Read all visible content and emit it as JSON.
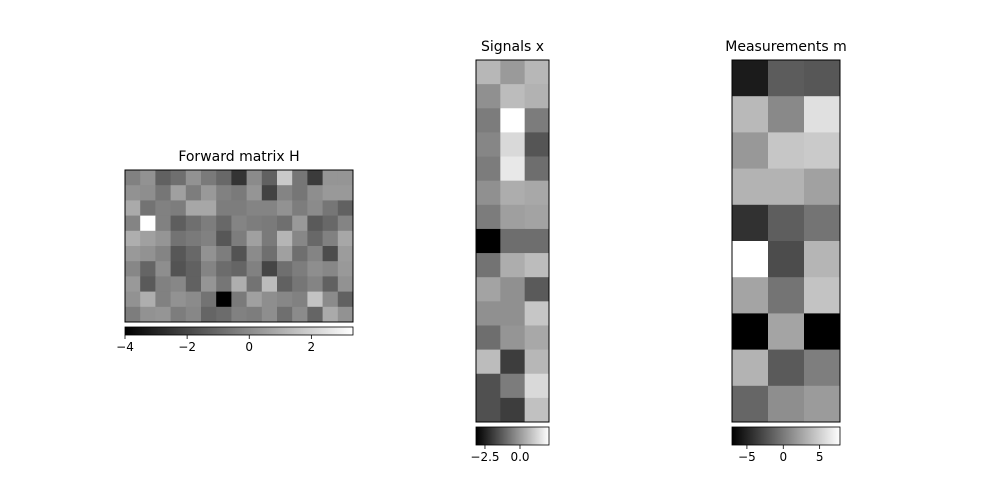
{
  "chart_data": [
    {
      "type": "heatmap",
      "title": "Forward matrix H",
      "cmap": "gray",
      "clim": [
        -4,
        3.34
      ],
      "colorbar_ticks": [
        {
          "value": -4,
          "label": "−4"
        },
        {
          "value": -2,
          "label": "−2"
        },
        0,
        2
      ],
      "values": [
        [
          -0.3,
          0.2,
          -1.2,
          -0.8,
          0.2,
          -0.5,
          -1.0,
          -2.5,
          0.0,
          -1.2,
          1.8,
          -0.6,
          -2.3,
          0.3,
          0.3
        ],
        [
          0.2,
          0.1,
          -0.6,
          0.6,
          -0.4,
          0.4,
          -0.3,
          -0.5,
          0.3,
          -2.1,
          -0.2,
          -0.6,
          0.1,
          0.4,
          0.4
        ],
        [
          0.9,
          -0.7,
          -0.3,
          -0.4,
          0.8,
          0.8,
          -0.4,
          -0.4,
          -0.2,
          -0.2,
          0.2,
          -0.4,
          0.0,
          -0.6,
          -1.2
        ],
        [
          -0.2,
          3.34,
          -0.3,
          -1.3,
          -0.8,
          -0.4,
          -1.0,
          -0.2,
          -0.4,
          -0.5,
          -0.8,
          0.4,
          -1.4,
          -1.0,
          -0.2
        ],
        [
          1.0,
          0.6,
          0.3,
          -0.7,
          -0.5,
          -0.3,
          -1.5,
          -0.4,
          0.6,
          -0.5,
          1.2,
          -0.1,
          -1.0,
          -0.3,
          0.8
        ],
        [
          0.4,
          0.2,
          -0.2,
          -1.5,
          -1.0,
          0.2,
          -0.4,
          -1.6,
          0.0,
          -0.8,
          0.6,
          -0.8,
          -0.2,
          -1.8,
          0.5
        ],
        [
          -0.1,
          -1.1,
          0.1,
          -1.6,
          -1.2,
          -0.2,
          -0.9,
          -1.1,
          -0.3,
          -2.0,
          -0.8,
          -0.4,
          0.1,
          -0.1,
          0.4
        ],
        [
          0.4,
          -1.4,
          -0.3,
          -0.1,
          -1.2,
          0.3,
          -0.6,
          1.0,
          -0.7,
          1.4,
          -1.2,
          -0.6,
          -0.2,
          -1.2,
          0.2
        ],
        [
          0.2,
          1.0,
          -0.3,
          0.2,
          0.0,
          -0.7,
          -4.0,
          -0.5,
          0.6,
          0.1,
          -0.1,
          -0.3,
          1.6,
          0.0,
          -1.2
        ],
        [
          -0.4,
          0.2,
          0.3,
          -0.4,
          -0.1,
          -1.1,
          -0.9,
          -0.3,
          -0.4,
          0.1,
          -0.8,
          0.0,
          -1.1,
          0.9,
          0.2
        ]
      ]
    },
    {
      "type": "heatmap",
      "title": "Signals x",
      "cmap": "gray",
      "clim": [
        -3.14,
        2.07
      ],
      "colorbar_ticks": [
        {
          "value": -2.5,
          "label": "−2.5"
        },
        {
          "value": 0,
          "label": "0.0"
        }
      ],
      "values": [
        [
          0.6,
          0.0,
          0.6
        ],
        [
          -0.2,
          0.7,
          0.5
        ],
        [
          -0.6,
          2.07,
          -0.6
        ],
        [
          -0.4,
          1.3,
          -1.4
        ],
        [
          -0.6,
          1.6,
          -0.9
        ],
        [
          -0.2,
          0.4,
          0.3
        ],
        [
          -0.6,
          0.1,
          0.2
        ],
        [
          -3.14,
          -0.9,
          -0.9
        ],
        [
          -0.8,
          0.4,
          0.7
        ],
        [
          0.2,
          -0.2,
          -1.3
        ],
        [
          -0.2,
          -0.2,
          0.9
        ],
        [
          -0.9,
          -0.1,
          0.3
        ],
        [
          0.7,
          -1.9,
          0.6
        ],
        [
          -1.5,
          -0.6,
          1.3
        ],
        [
          -1.5,
          -1.9,
          0.8
        ]
      ]
    },
    {
      "type": "heatmap",
      "title": "Measurements m",
      "cmap": "gray",
      "clim": [
        -7.05,
        7.8
      ],
      "colorbar_ticks": [
        {
          "value": -5,
          "label": "−5"
        },
        0,
        5
      ],
      "values": [
        [
          -5.5,
          -1.7,
          -2.0
        ],
        [
          3.7,
          0.9,
          6.0
        ],
        [
          1.8,
          4.5,
          4.7
        ],
        [
          3.4,
          3.4,
          2.3
        ],
        [
          -4.2,
          -1.6,
          -0.3
        ],
        [
          7.8,
          -2.6,
          3.5
        ],
        [
          2.5,
          -0.3,
          4.3
        ],
        [
          -7.05,
          2.5,
          -7.05
        ],
        [
          3.4,
          -1.8,
          0.3
        ],
        [
          -1.1,
          1.2,
          2.0
        ]
      ]
    }
  ]
}
